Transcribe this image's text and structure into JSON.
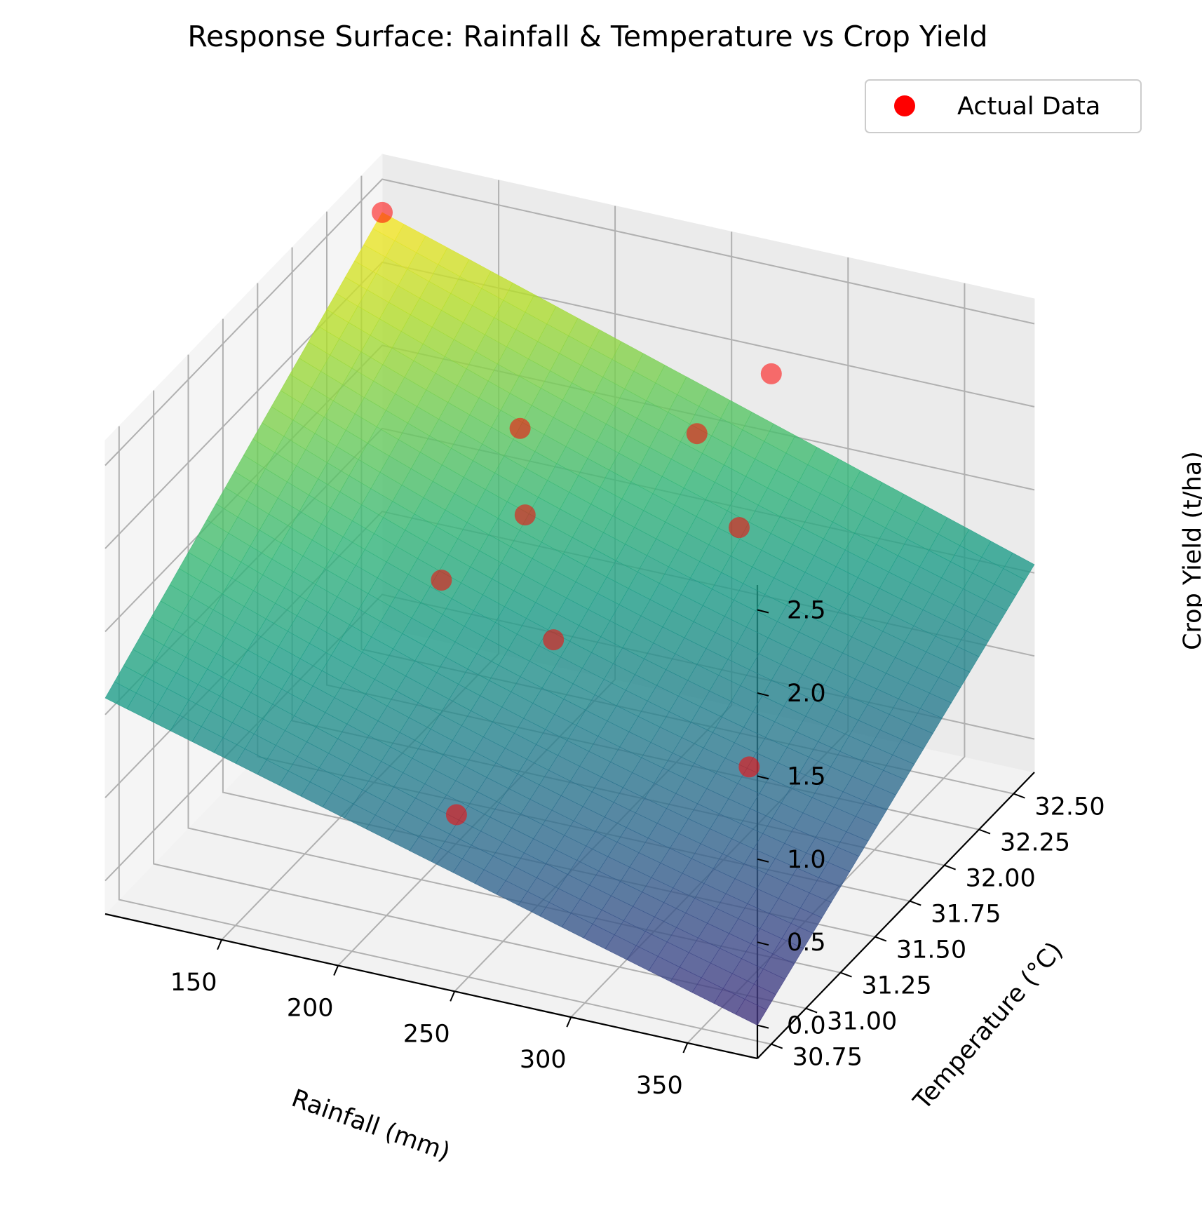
{
  "chart_data": {
    "type": "surface3d",
    "title": "Response Surface: Rainfall & Temperature vs Crop Yield",
    "xlabel": "Rainfall (mm)",
    "ylabel": "Temperature (°C)",
    "zlabel": "Crop Yield (t/ha)",
    "xlim": [
      100,
      380
    ],
    "ylim": [
      30.65,
      32.65
    ],
    "zlim": [
      -0.2,
      2.65
    ],
    "x_ticks": [
      150,
      200,
      250,
      300,
      350
    ],
    "y_ticks": [
      30.75,
      31.0,
      31.25,
      31.5,
      31.75,
      32.0,
      32.25,
      32.5
    ],
    "y_tick_labels": [
      "30.75",
      "31.00",
      "31.25",
      "31.50",
      "31.75",
      "32.00",
      "32.25",
      "32.50"
    ],
    "z_ticks": [
      0.0,
      0.5,
      1.0,
      1.5,
      2.0,
      2.5
    ],
    "z_tick_labels": [
      "0.0",
      "0.5",
      "1.0",
      "1.5",
      "2.0",
      "2.5"
    ],
    "surface": {
      "colormap": "viridis",
      "alpha": 0.8,
      "x_range": [
        100,
        380
      ],
      "y_range": [
        30.65,
        32.65
      ],
      "corner_values": {
        "x0y0": 1.1,
        "x1y0": 0.0,
        "x0y1": 2.3,
        "x1y1": 1.05
      },
      "center_value": 0.95
    },
    "series": [
      {
        "name": "Actual Data",
        "type": "scatter",
        "color": "#ff0000",
        "points": [
          {
            "x": 100,
            "y": 32.65,
            "z": 2.3
          },
          {
            "x": 180,
            "y": 32.3,
            "z": 1.55
          },
          {
            "x": 200,
            "y": 32.0,
            "z": 1.35
          },
          {
            "x": 170,
            "y": 31.9,
            "z": 0.95
          },
          {
            "x": 230,
            "y": 31.7,
            "z": 0.95
          },
          {
            "x": 250,
            "y": 32.4,
            "z": 1.65
          },
          {
            "x": 270,
            "y": 32.6,
            "z": 1.9
          },
          {
            "x": 280,
            "y": 32.2,
            "z": 1.35
          },
          {
            "x": 230,
            "y": 31.0,
            "z": 0.5
          },
          {
            "x": 320,
            "y": 31.6,
            "z": 0.55
          }
        ]
      }
    ],
    "legend": {
      "position": "top-right",
      "labels": [
        "Actual Data"
      ]
    },
    "grid": true
  }
}
